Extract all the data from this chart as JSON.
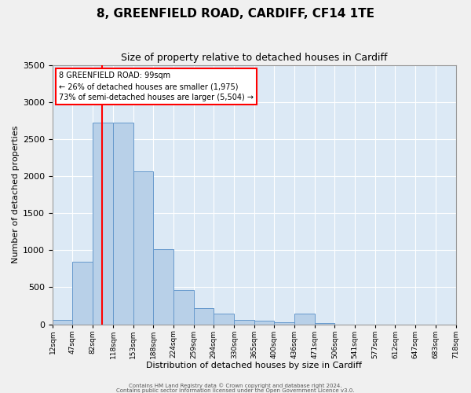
{
  "title1": "8, GREENFIELD ROAD, CARDIFF, CF14 1TE",
  "title2": "Size of property relative to detached houses in Cardiff",
  "xlabel": "Distribution of detached houses by size in Cardiff",
  "ylabel": "Number of detached properties",
  "bar_color": "#b8d0e8",
  "bar_edge_color": "#6699cc",
  "bg_color": "#dce9f5",
  "grid_color": "#ffffff",
  "vline_x": 99,
  "vline_color": "red",
  "annotation_line1": "8 GREENFIELD ROAD: 99sqm",
  "annotation_line2": "← 26% of detached houses are smaller (1,975)",
  "annotation_line3": "73% of semi-detached houses are larger (5,504) →",
  "annotation_box_facecolor": "#ffffff",
  "annotation_box_edgecolor": "red",
  "bin_edges": [
    12,
    47,
    82,
    118,
    153,
    188,
    224,
    259,
    294,
    330,
    365,
    400,
    436,
    471,
    506,
    541,
    577,
    612,
    647,
    683,
    718
  ],
  "bin_heights": [
    60,
    850,
    2730,
    2730,
    2070,
    1010,
    460,
    215,
    145,
    60,
    50,
    25,
    145,
    15,
    0,
    0,
    0,
    0,
    0,
    0
  ],
  "ylim": [
    0,
    3500
  ],
  "yticks": [
    0,
    500,
    1000,
    1500,
    2000,
    2500,
    3000,
    3500
  ],
  "xlim_left": 12,
  "xlim_right": 718,
  "footer1": "Contains HM Land Registry data © Crown copyright and database right 2024.",
  "footer2": "Contains public sector information licensed under the Open Government Licence v3.0."
}
